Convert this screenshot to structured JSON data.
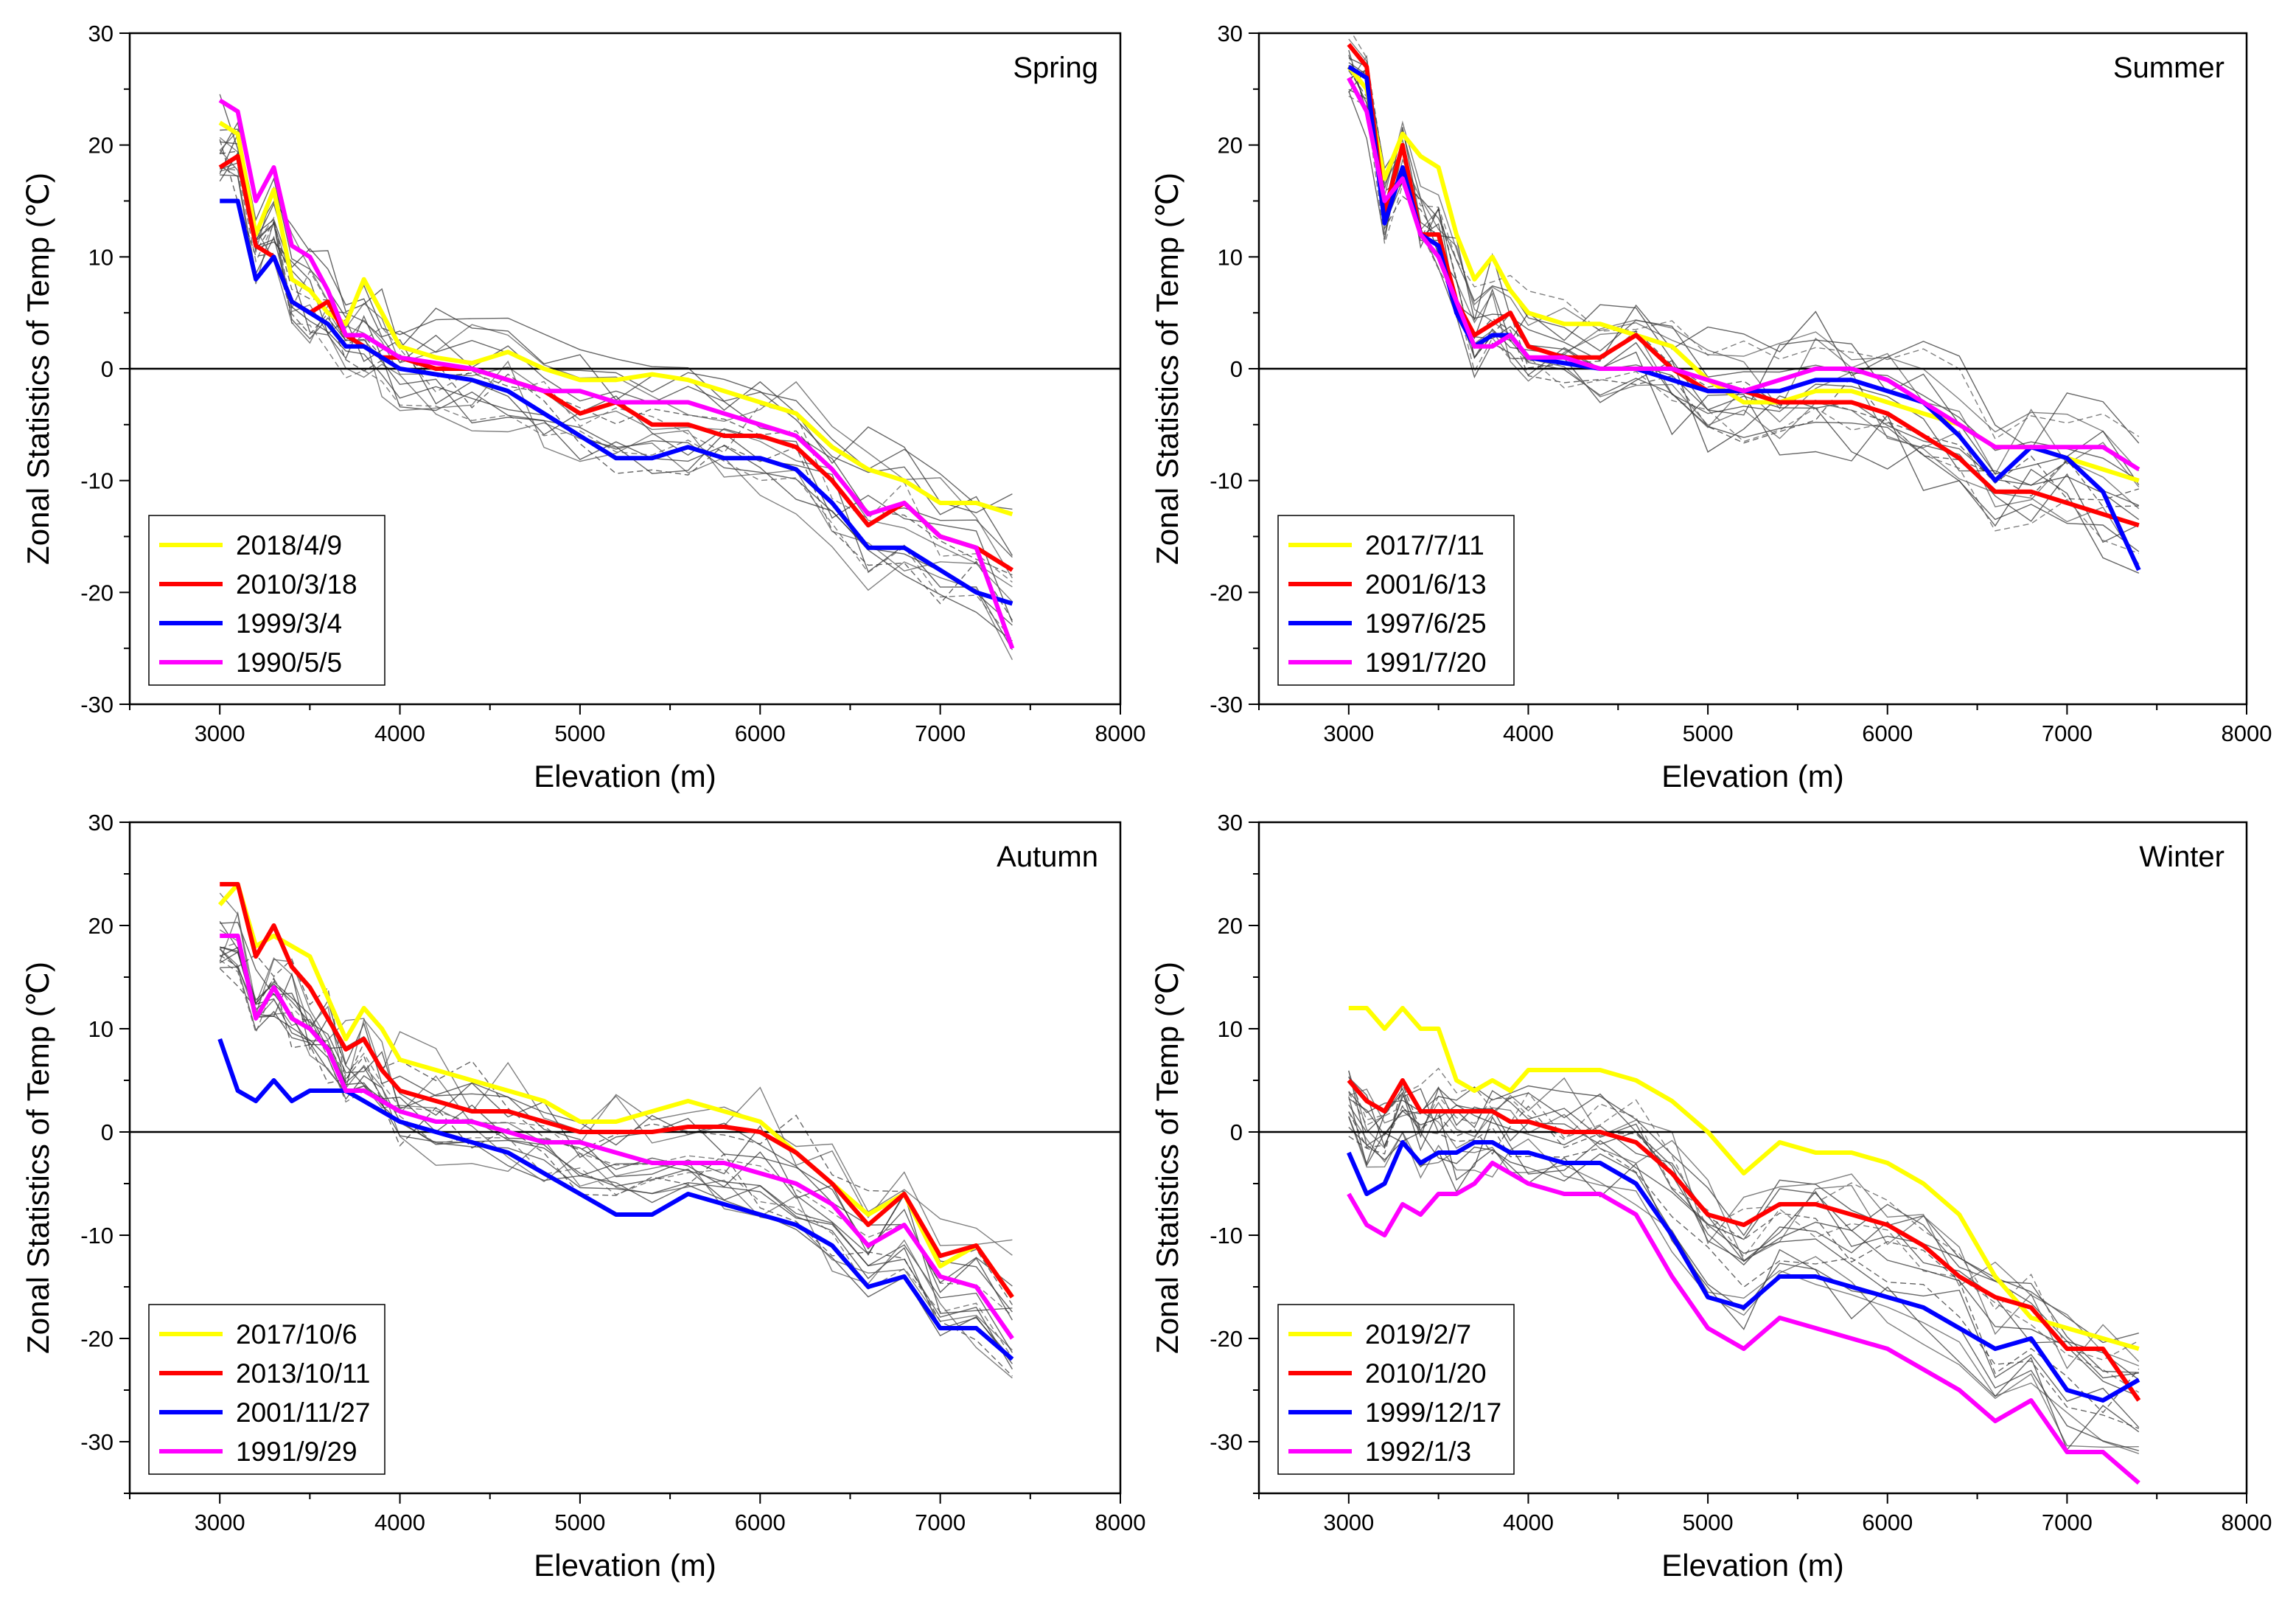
{
  "figure": {
    "panels": [
      "spring",
      "summer",
      "autumn",
      "winter"
    ]
  },
  "chart_data": [
    {
      "id": "spring",
      "type": "line",
      "season_label": "Spring",
      "xlabel": "Elevation (m)",
      "ylabel": "Zonal Statistics of Temp (℃)",
      "xlim": [
        2500,
        8000
      ],
      "ylim": [
        -30,
        30
      ],
      "xticks": [
        3000,
        4000,
        5000,
        6000,
        7000,
        8000
      ],
      "yticks": [
        -30,
        -20,
        -10,
        0,
        10,
        20,
        30
      ],
      "zero_line": true,
      "legend_position": "bottom-left",
      "series": [
        {
          "name": "2018/4/9",
          "color": "#ffff00",
          "x": [
            3000,
            3100,
            3200,
            3300,
            3400,
            3500,
            3600,
            3700,
            3800,
            3900,
            4000,
            4200,
            4400,
            4600,
            4800,
            5000,
            5200,
            5400,
            5600,
            5800,
            6000,
            6200,
            6400,
            6600,
            6800,
            7000,
            7200,
            7400
          ],
          "y": [
            22,
            21,
            12,
            16,
            8,
            7,
            5,
            4,
            8,
            5,
            2,
            1,
            0.5,
            1.5,
            0,
            -1,
            -1,
            -0.5,
            -1,
            -2,
            -3,
            -4,
            -7,
            -9,
            -10,
            -12,
            -12,
            -13
          ]
        },
        {
          "name": "2010/3/18",
          "color": "#ff0000",
          "x": [
            3000,
            3100,
            3200,
            3300,
            3400,
            3500,
            3600,
            3700,
            3800,
            3900,
            4000,
            4200,
            4400,
            4600,
            4800,
            5000,
            5200,
            5400,
            5600,
            5800,
            6000,
            6200,
            6400,
            6600,
            6800,
            7000,
            7200,
            7400
          ],
          "y": [
            18,
            19,
            11,
            10,
            6,
            5,
            6,
            3,
            2,
            1,
            1,
            0,
            0,
            -1,
            -2,
            -4,
            -3,
            -5,
            -5,
            -6,
            -6,
            -7,
            -10,
            -14,
            -12,
            -15,
            -16,
            -18
          ]
        },
        {
          "name": "1999/3/4",
          "color": "#0000ff",
          "x": [
            3000,
            3100,
            3200,
            3300,
            3400,
            3500,
            3600,
            3700,
            3800,
            3900,
            4000,
            4200,
            4400,
            4600,
            4800,
            5000,
            5200,
            5400,
            5600,
            5800,
            6000,
            6200,
            6400,
            6600,
            6800,
            7000,
            7200,
            7400
          ],
          "y": [
            15,
            15,
            8,
            10,
            6,
            5,
            4,
            2,
            2,
            1,
            0,
            -0.5,
            -1,
            -2,
            -4,
            -6,
            -8,
            -8,
            -7,
            -8,
            -8,
            -9,
            -12,
            -16,
            -16,
            -18,
            -20,
            -21
          ]
        },
        {
          "name": "1990/5/5",
          "color": "#ff00ff",
          "x": [
            3000,
            3100,
            3200,
            3300,
            3400,
            3500,
            3600,
            3700,
            3800,
            3900,
            4000,
            4200,
            4400,
            4600,
            4800,
            5000,
            5200,
            5400,
            5600,
            5800,
            6000,
            6200,
            6400,
            6600,
            6800,
            7000,
            7200,
            7400
          ],
          "y": [
            24,
            23,
            15,
            18,
            11,
            10,
            7,
            3,
            3,
            2,
            1,
            0.5,
            0,
            -1,
            -2,
            -2,
            -3,
            -3,
            -3,
            -4,
            -5,
            -6,
            -9,
            -13,
            -12,
            -15,
            -16,
            -25
          ]
        }
      ]
    },
    {
      "id": "summer",
      "type": "line",
      "season_label": "Summer",
      "xlabel": "Elevation (m)",
      "ylabel": "Zonal Statistics of Temp (℃)",
      "xlim": [
        2500,
        8000
      ],
      "ylim": [
        -30,
        30
      ],
      "xticks": [
        3000,
        4000,
        5000,
        6000,
        7000,
        8000
      ],
      "yticks": [
        -30,
        -20,
        -10,
        0,
        10,
        20,
        30
      ],
      "zero_line": true,
      "legend_position": "bottom-left",
      "series": [
        {
          "name": "2017/7/11",
          "color": "#ffff00",
          "x": [
            3000,
            3100,
            3200,
            3300,
            3400,
            3500,
            3600,
            3700,
            3800,
            3900,
            4000,
            4200,
            4400,
            4600,
            4800,
            5000,
            5200,
            5400,
            5600,
            5800,
            6000,
            6200,
            6400,
            6600,
            6800,
            7000,
            7200,
            7400
          ],
          "y": [
            27,
            25,
            17,
            21,
            19,
            18,
            12,
            8,
            10,
            7,
            5,
            4,
            4,
            3,
            2,
            -1,
            -3,
            -3,
            -2,
            -2,
            -3,
            -4,
            -5,
            -7,
            -7,
            -8,
            -9,
            -10
          ]
        },
        {
          "name": "2001/6/13",
          "color": "#ff0000",
          "x": [
            3000,
            3100,
            3200,
            3300,
            3400,
            3500,
            3600,
            3700,
            3800,
            3900,
            4000,
            4200,
            4400,
            4600,
            4800,
            5000,
            5200,
            5400,
            5600,
            5800,
            6000,
            6200,
            6400,
            6600,
            6800,
            7000,
            7200,
            7400
          ],
          "y": [
            29,
            27,
            14,
            20,
            12,
            12,
            6,
            3,
            4,
            5,
            2,
            1,
            1,
            3,
            0,
            -2,
            -2,
            -3,
            -3,
            -3,
            -4,
            -6,
            -8,
            -11,
            -11,
            -12,
            -13,
            -14
          ]
        },
        {
          "name": "1997/6/25",
          "color": "#0000ff",
          "x": [
            3000,
            3100,
            3200,
            3300,
            3400,
            3500,
            3600,
            3700,
            3800,
            3900,
            4000,
            4200,
            4400,
            4600,
            4800,
            5000,
            5200,
            5400,
            5600,
            5800,
            6000,
            6200,
            6400,
            6600,
            6800,
            7000,
            7200,
            7400
          ],
          "y": [
            27,
            26,
            13,
            18,
            12,
            11,
            5,
            2,
            3,
            3,
            1,
            0.5,
            0,
            0,
            -1,
            -2,
            -2,
            -2,
            -1,
            -1,
            -2,
            -3,
            -6,
            -10,
            -7,
            -8,
            -11,
            -18
          ]
        },
        {
          "name": "1991/7/20",
          "color": "#ff00ff",
          "x": [
            3000,
            3100,
            3200,
            3300,
            3400,
            3500,
            3600,
            3700,
            3800,
            3900,
            4000,
            4200,
            4400,
            4600,
            4800,
            5000,
            5200,
            5400,
            5600,
            5800,
            6000,
            6200,
            6400,
            6600,
            6800,
            7000,
            7200,
            7400
          ],
          "y": [
            26,
            23,
            15,
            17,
            12,
            10,
            6,
            2,
            2,
            3,
            1,
            1,
            0,
            0,
            0,
            -1,
            -2,
            -1,
            0,
            0,
            -1,
            -3,
            -5,
            -7,
            -7,
            -7,
            -7,
            -9
          ]
        }
      ]
    },
    {
      "id": "autumn",
      "type": "line",
      "season_label": "Autumn",
      "xlabel": "Elevation (m)",
      "ylabel": "Zonal Statistics of Temp (℃)",
      "xlim": [
        2500,
        8000
      ],
      "ylim": [
        -35,
        30
      ],
      "xticks": [
        3000,
        4000,
        5000,
        6000,
        7000,
        8000
      ],
      "yticks": [
        -30,
        -20,
        -10,
        0,
        10,
        20,
        30
      ],
      "zero_line": true,
      "legend_position": "bottom-left",
      "series": [
        {
          "name": "2017/10/6",
          "color": "#ffff00",
          "x": [
            3000,
            3100,
            3200,
            3300,
            3400,
            3500,
            3600,
            3700,
            3800,
            3900,
            4000,
            4200,
            4400,
            4600,
            4800,
            5000,
            5200,
            5400,
            5600,
            5800,
            6000,
            6200,
            6400,
            6600,
            6800,
            7000,
            7200,
            7400
          ],
          "y": [
            22,
            24,
            18,
            19,
            18,
            17,
            13,
            9,
            12,
            10,
            7,
            6,
            5,
            4,
            3,
            1,
            1,
            2,
            3,
            2,
            1,
            -2,
            -5,
            -8,
            -6,
            -13,
            -11,
            -16
          ]
        },
        {
          "name": "2013/10/11",
          "color": "#ff0000",
          "x": [
            3000,
            3100,
            3200,
            3300,
            3400,
            3500,
            3600,
            3700,
            3800,
            3900,
            4000,
            4200,
            4400,
            4600,
            4800,
            5000,
            5200,
            5400,
            5600,
            5800,
            6000,
            6200,
            6400,
            6600,
            6800,
            7000,
            7200,
            7400
          ],
          "y": [
            24,
            24,
            17,
            20,
            16,
            14,
            11,
            8,
            9,
            6,
            4,
            3,
            2,
            2,
            1,
            0,
            0,
            0,
            0.5,
            0.5,
            0,
            -2,
            -5,
            -9,
            -6,
            -12,
            -11,
            -16
          ]
        },
        {
          "name": "2001/11/27",
          "color": "#0000ff",
          "x": [
            3000,
            3100,
            3200,
            3300,
            3400,
            3500,
            3600,
            3700,
            3800,
            3900,
            4000,
            4200,
            4400,
            4600,
            4800,
            5000,
            5200,
            5400,
            5600,
            5800,
            6000,
            6200,
            6400,
            6600,
            6800,
            7000,
            7200,
            7400
          ],
          "y": [
            9,
            4,
            3,
            5,
            3,
            4,
            4,
            4,
            3,
            2,
            1,
            0,
            -1,
            -2,
            -4,
            -6,
            -8,
            -8,
            -6,
            -7,
            -8,
            -9,
            -11,
            -15,
            -14,
            -19,
            -19,
            -22
          ]
        },
        {
          "name": "1991/9/29",
          "color": "#ff00ff",
          "x": [
            3000,
            3100,
            3200,
            3300,
            3400,
            3500,
            3600,
            3700,
            3800,
            3900,
            4000,
            4200,
            4400,
            4600,
            4800,
            5000,
            5200,
            5400,
            5600,
            5800,
            6000,
            6200,
            6400,
            6600,
            6800,
            7000,
            7200,
            7400
          ],
          "y": [
            19,
            19,
            11,
            14,
            11,
            10,
            8,
            4,
            4,
            3,
            2,
            1,
            1,
            0,
            -1,
            -1,
            -2,
            -3,
            -3,
            -3,
            -4,
            -5,
            -7,
            -11,
            -9,
            -14,
            -15,
            -20
          ]
        }
      ]
    },
    {
      "id": "winter",
      "type": "line",
      "season_label": "Winter",
      "xlabel": "Elevation (m)",
      "ylabel": "Zonal Statistics of Temp (℃)",
      "xlim": [
        2500,
        8000
      ],
      "ylim": [
        -35,
        30
      ],
      "xticks": [
        3000,
        4000,
        5000,
        6000,
        7000,
        8000
      ],
      "yticks": [
        -30,
        -20,
        -10,
        0,
        10,
        20,
        30
      ],
      "zero_line": true,
      "legend_position": "bottom-left",
      "series": [
        {
          "name": "2019/2/7",
          "color": "#ffff00",
          "x": [
            3000,
            3100,
            3200,
            3300,
            3400,
            3500,
            3600,
            3700,
            3800,
            3900,
            4000,
            4200,
            4400,
            4600,
            4800,
            5000,
            5200,
            5400,
            5600,
            5800,
            6000,
            6200,
            6400,
            6600,
            6800,
            7000,
            7200,
            7400
          ],
          "y": [
            12,
            12,
            10,
            12,
            10,
            10,
            5,
            4,
            5,
            4,
            6,
            6,
            6,
            5,
            3,
            0,
            -4,
            -1,
            -2,
            -2,
            -3,
            -5,
            -8,
            -14,
            -18,
            -19,
            -20,
            -21
          ]
        },
        {
          "name": "2010/1/20",
          "color": "#ff0000",
          "x": [
            3000,
            3100,
            3200,
            3300,
            3400,
            3500,
            3600,
            3700,
            3800,
            3900,
            4000,
            4200,
            4400,
            4600,
            4800,
            5000,
            5200,
            5400,
            5600,
            5800,
            6000,
            6200,
            6400,
            6600,
            6800,
            7000,
            7200,
            7400
          ],
          "y": [
            5,
            3,
            2,
            5,
            2,
            2,
            2,
            2,
            2,
            1,
            1,
            0,
            0,
            -1,
            -4,
            -8,
            -9,
            -7,
            -7,
            -8,
            -9,
            -11,
            -14,
            -16,
            -17,
            -21,
            -21,
            -26
          ]
        },
        {
          "name": "1999/12/17",
          "color": "#0000ff",
          "x": [
            3000,
            3100,
            3200,
            3300,
            3400,
            3500,
            3600,
            3700,
            3800,
            3900,
            4000,
            4200,
            4400,
            4600,
            4800,
            5000,
            5200,
            5400,
            5600,
            5800,
            6000,
            6200,
            6400,
            6600,
            6800,
            7000,
            7200,
            7400
          ],
          "y": [
            -2,
            -6,
            -5,
            -1,
            -3,
            -2,
            -2,
            -1,
            -1,
            -2,
            -2,
            -3,
            -3,
            -5,
            -10,
            -16,
            -17,
            -14,
            -14,
            -15,
            -16,
            -17,
            -19,
            -21,
            -20,
            -25,
            -26,
            -24
          ]
        },
        {
          "name": "1992/1/3",
          "color": "#ff00ff",
          "x": [
            3000,
            3100,
            3200,
            3300,
            3400,
            3500,
            3600,
            3700,
            3800,
            3900,
            4000,
            4200,
            4400,
            4600,
            4800,
            5000,
            5200,
            5400,
            5600,
            5800,
            6000,
            6200,
            6400,
            6600,
            6800,
            7000,
            7200,
            7400
          ],
          "y": [
            -6,
            -9,
            -10,
            -7,
            -8,
            -6,
            -6,
            -5,
            -3,
            -4,
            -5,
            -6,
            -6,
            -8,
            -14,
            -19,
            -21,
            -18,
            -19,
            -20,
            -21,
            -23,
            -25,
            -28,
            -26,
            -31,
            -31,
            -34
          ]
        }
      ]
    }
  ]
}
